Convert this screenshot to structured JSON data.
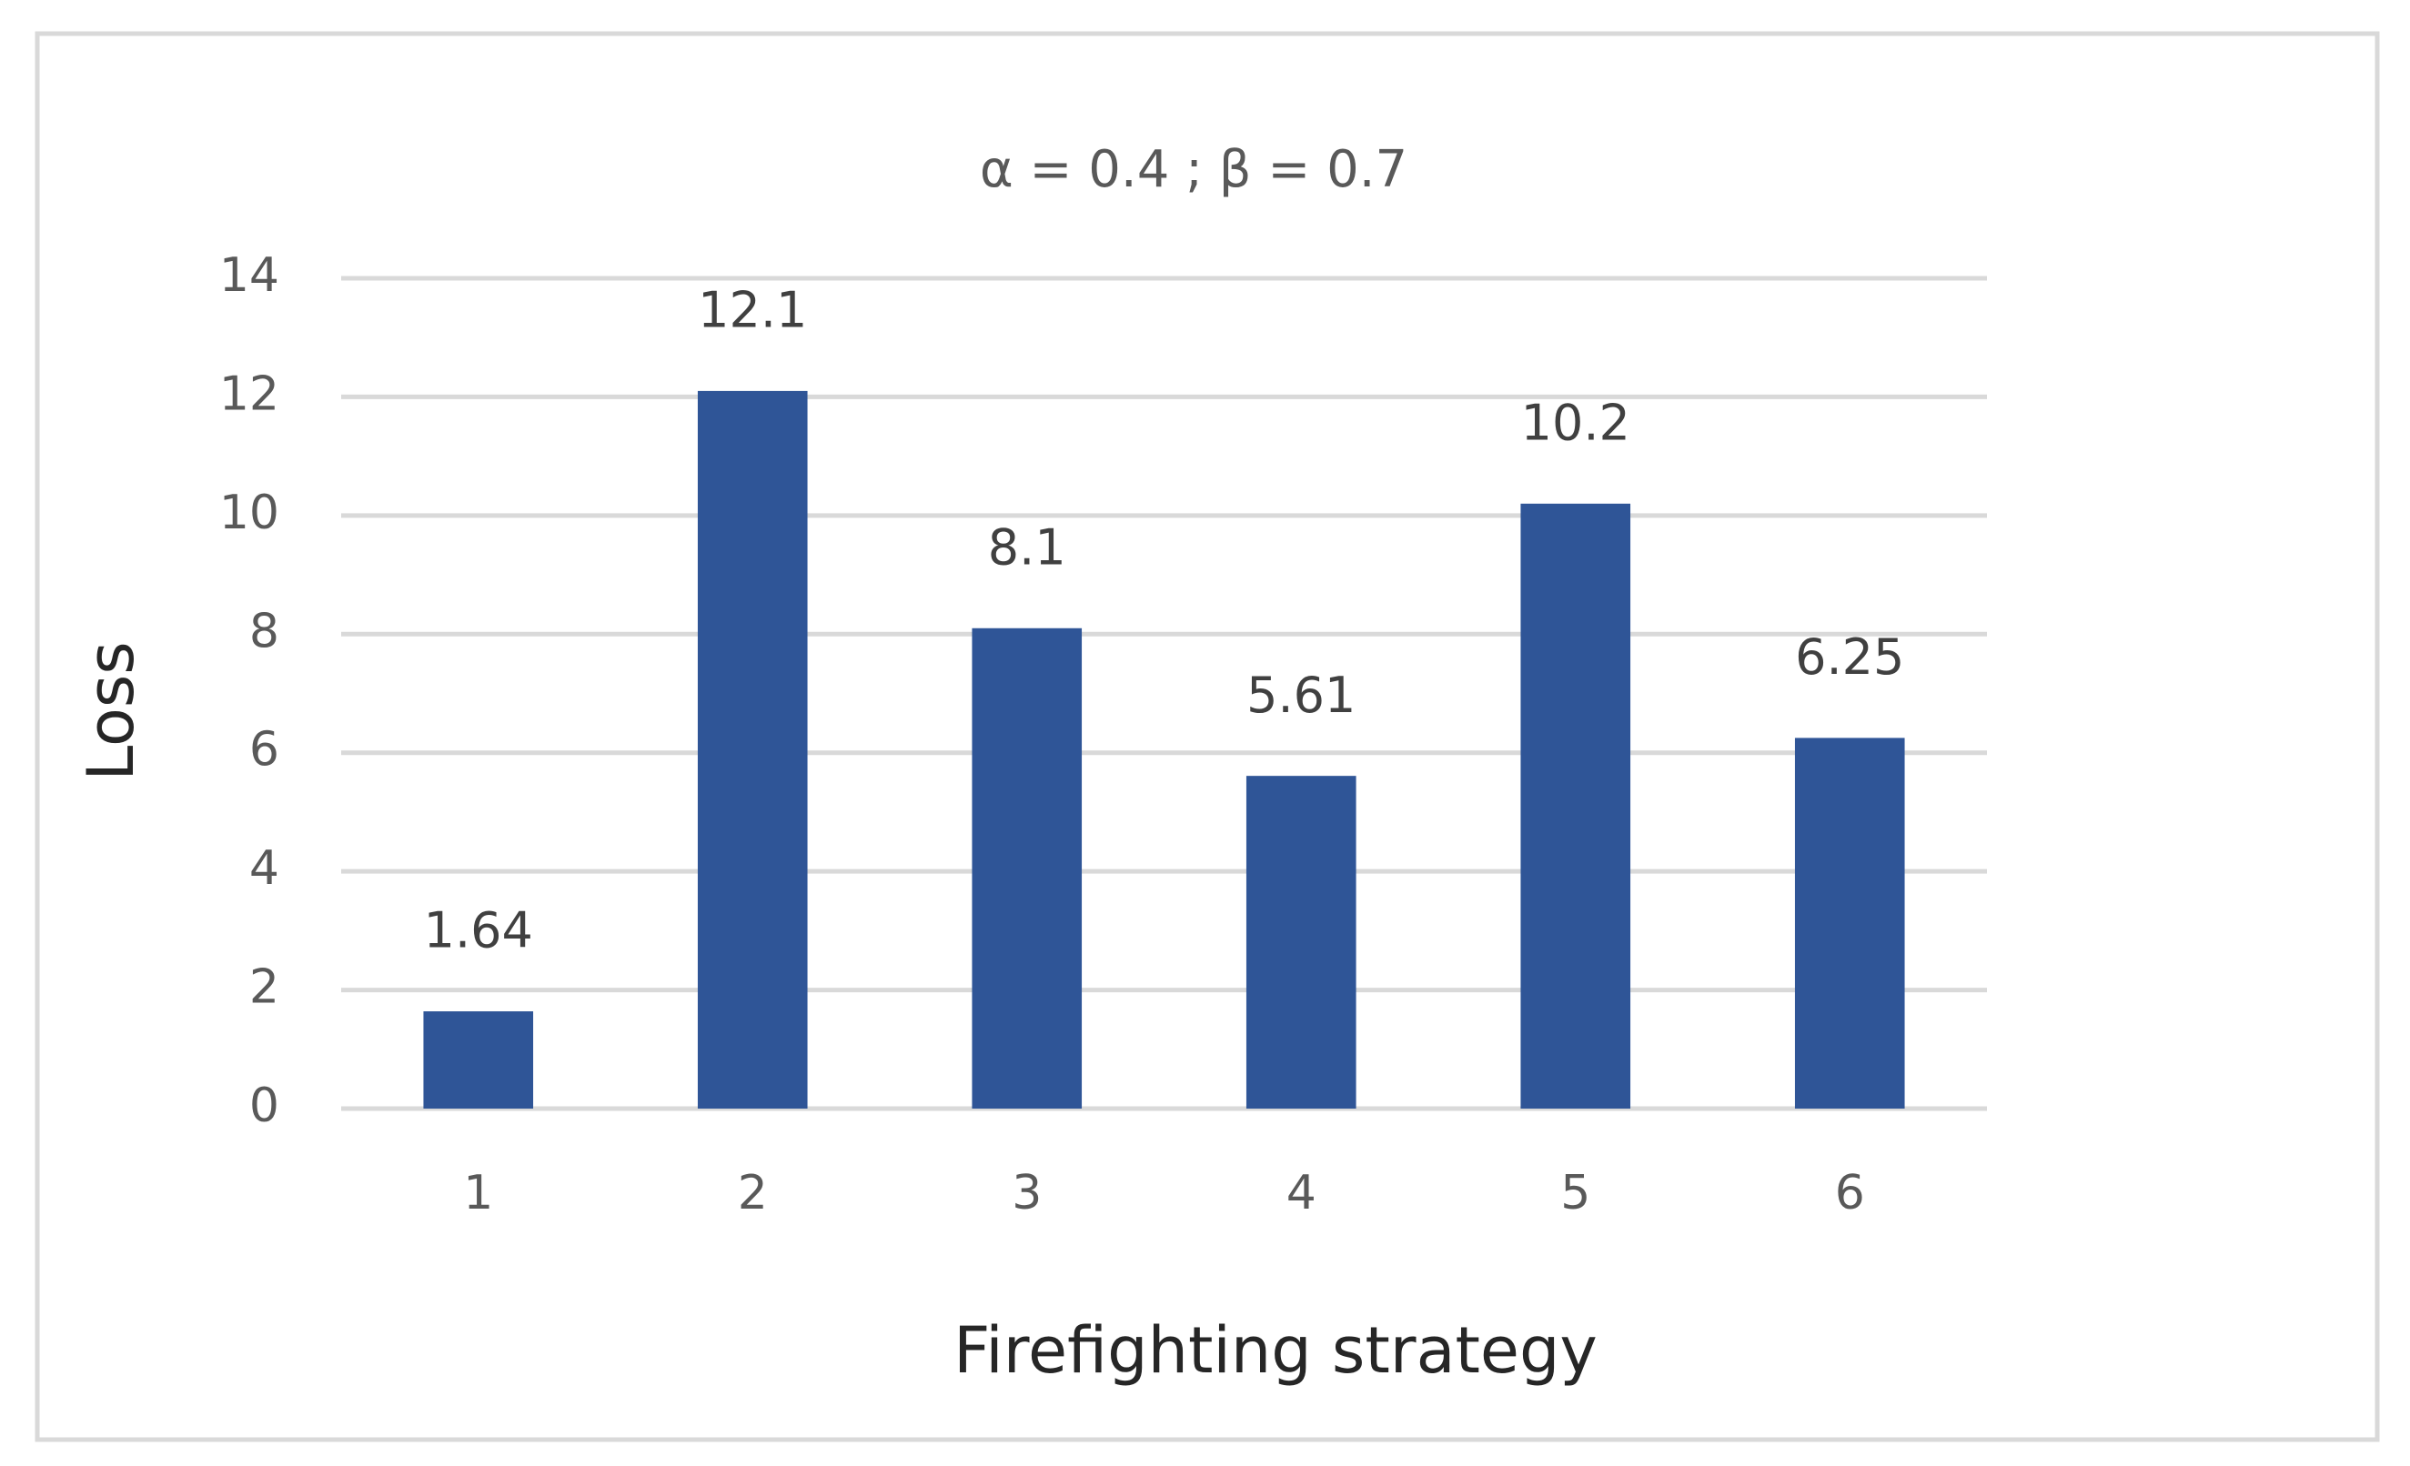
{
  "chart_data": {
    "type": "bar",
    "title": "α = 0.4 ; β = 0.7",
    "x_label": "Firefighting strategy",
    "y_label": "Loss",
    "categories": [
      "1",
      "2",
      "3",
      "4",
      "5",
      "6"
    ],
    "values": [
      1.64,
      12.1,
      8.1,
      5.61,
      10.2,
      6.25
    ],
    "color": "#2f5597",
    "ylim": [
      0,
      14
    ],
    "yticks": [
      0,
      2,
      4,
      6,
      8,
      10,
      12,
      14
    ],
    "grid": true
  }
}
